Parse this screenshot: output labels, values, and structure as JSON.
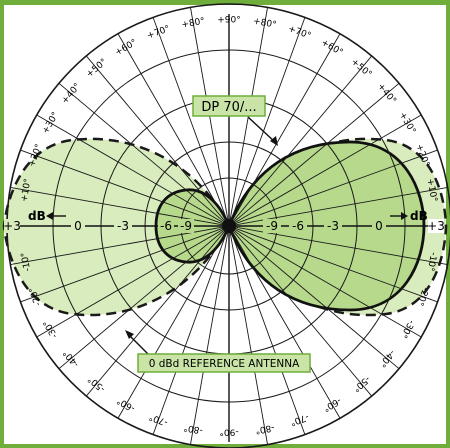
{
  "model_label": "DP 70/...",
  "reference_label": "0 dBd REFERENCE ANTENNA",
  "db_unit": "dB",
  "colors": {
    "frame": "#6fae3a",
    "fill_light": "#d9ecbd",
    "fill_mid": "#b7d98c",
    "label_bg": "#c9e4a6",
    "line": "#1a1a1a"
  },
  "angle_labels": {
    "top": [
      "+90°",
      "+80°",
      "+70°",
      "+60°",
      "+50°",
      "+40°",
      "+30°",
      "+20°",
      "+10°"
    ],
    "bottom": [
      "-90°",
      "-80°",
      "-70°",
      "-60°",
      "-50°",
      "-40°",
      "-30°",
      "-20°",
      "-10°"
    ],
    "side": "+3"
  },
  "radial_scale": {
    "right": [
      "+3",
      "0",
      "-3",
      "-6",
      "-9"
    ],
    "left": [
      "+3",
      "0",
      "-3",
      "-6",
      "-9"
    ]
  },
  "patterns": {
    "reference": "figure-eight, 0 dBd",
    "antenna": "asymmetric: large forward lobe, small back lobe"
  }
}
